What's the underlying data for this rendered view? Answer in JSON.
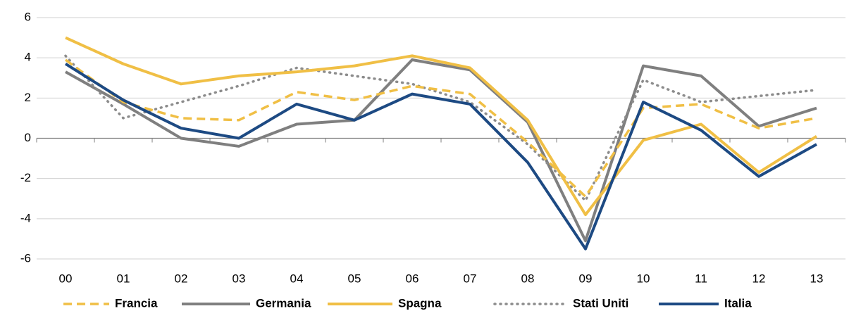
{
  "chart_data": {
    "type": "line",
    "categories": [
      "00",
      "01",
      "02",
      "03",
      "04",
      "05",
      "06",
      "07",
      "08",
      "09",
      "10",
      "11",
      "12",
      "13"
    ],
    "series": [
      {
        "name": "Francia",
        "color": "#f0bf45",
        "style": "dashed",
        "values": [
          3.9,
          1.8,
          1.0,
          0.9,
          2.3,
          1.9,
          2.6,
          2.2,
          -0.2,
          -2.9,
          1.5,
          1.7,
          0.5,
          1.0
        ]
      },
      {
        "name": "Germania",
        "color": "#7f7f7f",
        "style": "solid",
        "values": [
          3.3,
          1.7,
          0.0,
          -0.4,
          0.7,
          0.9,
          3.9,
          3.4,
          0.8,
          -5.1,
          3.6,
          3.1,
          0.6,
          1.5
        ]
      },
      {
        "name": "Spagna",
        "color": "#f0bf45",
        "style": "solid",
        "values": [
          5.0,
          3.7,
          2.7,
          3.1,
          3.3,
          3.6,
          4.1,
          3.5,
          0.9,
          -3.8,
          -0.1,
          0.7,
          -1.7,
          0.1
        ]
      },
      {
        "name": "Stati Uniti",
        "color": "#8c8c8c",
        "style": "dotted",
        "values": [
          4.1,
          1.0,
          1.8,
          2.6,
          3.5,
          3.1,
          2.7,
          1.8,
          -0.3,
          -3.1,
          2.9,
          1.8,
          2.1,
          2.4
        ]
      },
      {
        "name": "Italia",
        "color": "#1d4a83",
        "style": "solid",
        "values": [
          3.7,
          1.9,
          0.5,
          0.0,
          1.7,
          0.9,
          2.2,
          1.7,
          -1.2,
          -5.5,
          1.8,
          0.4,
          -1.9,
          -0.3
        ]
      }
    ],
    "ylim": [
      -6,
      6
    ],
    "yticks": [
      -6,
      -4,
      -2,
      0,
      2,
      4,
      6
    ],
    "grid": true,
    "legend": "bottom"
  }
}
